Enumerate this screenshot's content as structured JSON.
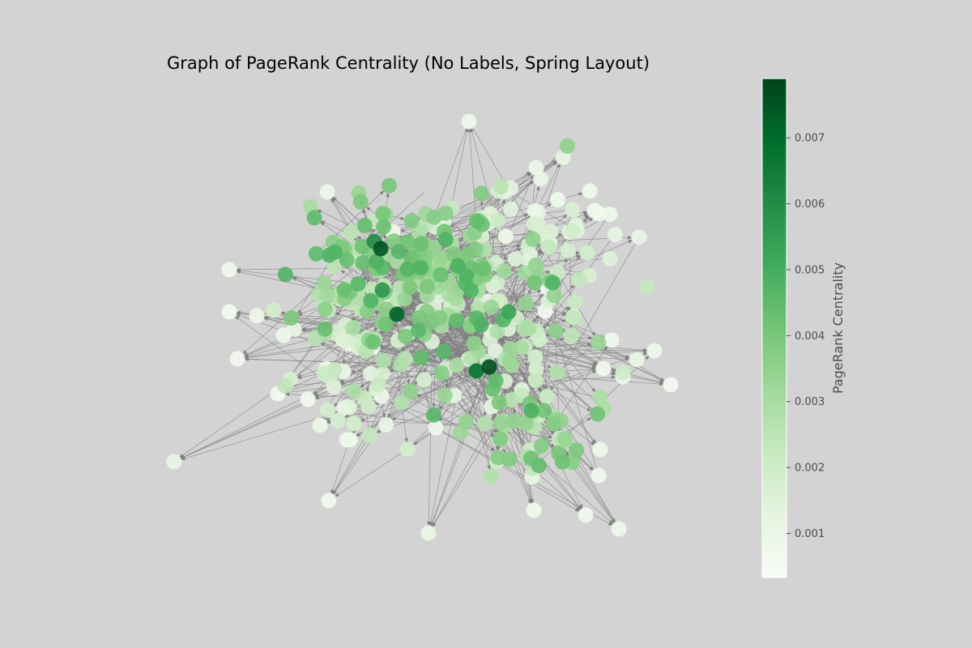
{
  "title": "Graph of PageRank Centrality (No Labels, Spring Layout)",
  "chart_data": {
    "type": "network",
    "layout": "spring",
    "node_labels": false,
    "edge_color": "#808080",
    "edge_arrows": true,
    "background": "#d3d3d3",
    "colormap": "Greens",
    "colorbar": {
      "label": "PageRank Centrality",
      "range": [
        0.00033,
        0.0079
      ],
      "ticks": [
        0.001,
        0.002,
        0.003,
        0.004,
        0.005,
        0.006,
        0.007
      ],
      "tick_labels": [
        "0.001",
        "0.002",
        "0.003",
        "0.004",
        "0.005",
        "0.006",
        "0.007"
      ],
      "position": "right"
    },
    "approx_node_count": 400
  }
}
